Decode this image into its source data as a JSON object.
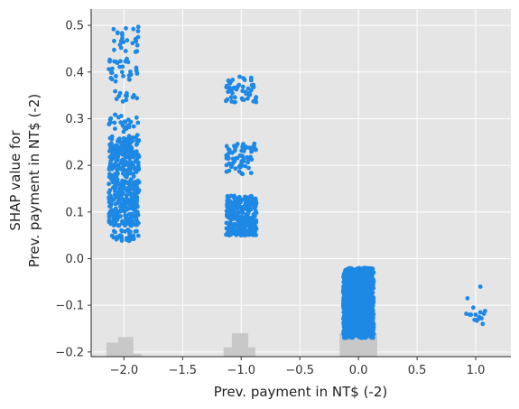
{
  "chart_data": {
    "type": "scatter",
    "xlabel": "Prev. payment in NT$ (-2)",
    "ylabel_lines": [
      "SHAP value for",
      "Prev. payment in NT$ (-2)"
    ],
    "xlim": [
      -2.28,
      1.3
    ],
    "ylim": [
      -0.21,
      0.535
    ],
    "x_ticks": [
      -2.0,
      -1.5,
      -1.0,
      -0.5,
      0.0,
      0.5,
      1.0
    ],
    "x_tick_labels": [
      "−2.0",
      "−1.5",
      "−1.0",
      "−0.5",
      "0.0",
      "0.5",
      "1.0"
    ],
    "y_ticks": [
      -0.2,
      -0.1,
      0.0,
      0.1,
      0.2,
      0.3,
      0.4,
      0.5
    ],
    "y_tick_labels": [
      "−0.2",
      "−0.1",
      "0.0",
      "0.1",
      "0.2",
      "0.3",
      "0.4",
      "0.5"
    ],
    "grid": true,
    "point_color": "#1E88E5",
    "background_color": "#E5E5E5",
    "histogram_color": "#C8C8C8",
    "histogram_bars": [
      {
        "x0": -2.15,
        "x1": -2.05,
        "height": 0.03
      },
      {
        "x0": -2.05,
        "x1": -1.92,
        "height": 0.042
      },
      {
        "x0": -1.92,
        "x1": -1.85,
        "height": 0.006
      },
      {
        "x0": -1.15,
        "x1": -1.08,
        "height": 0.02
      },
      {
        "x0": -1.08,
        "x1": -0.94,
        "height": 0.05
      },
      {
        "x0": -0.94,
        "x1": -0.88,
        "height": 0.02
      },
      {
        "x0": -0.16,
        "x1": 0.16,
        "height": 0.05
      }
    ],
    "series": [
      {
        "category_x": -2.0,
        "clusters": [
          {
            "y0": 0.038,
            "y1": 0.062,
            "n": 35
          },
          {
            "y0": 0.07,
            "y1": 0.26,
            "n": 430
          },
          {
            "y0": 0.26,
            "y1": 0.31,
            "n": 30
          },
          {
            "y0": 0.335,
            "y1": 0.36,
            "n": 12
          },
          {
            "y0": 0.38,
            "y1": 0.43,
            "n": 30
          },
          {
            "y0": 0.44,
            "y1": 0.5,
            "n": 25
          }
        ]
      },
      {
        "category_x": -1.0,
        "clusters": [
          {
            "y0": 0.05,
            "y1": 0.135,
            "n": 320
          },
          {
            "y0": 0.18,
            "y1": 0.25,
            "n": 70
          },
          {
            "y0": 0.33,
            "y1": 0.39,
            "n": 55
          }
        ]
      },
      {
        "category_x": 0.0,
        "clusters": [
          {
            "y0": -0.17,
            "y1": -0.02,
            "n": 1200
          }
        ]
      },
      {
        "category_x": 1.0,
        "points": [
          [
            0.93,
            -0.085
          ],
          [
            0.96,
            -0.12
          ],
          [
            0.98,
            -0.105
          ],
          [
            1.0,
            -0.12
          ],
          [
            1.02,
            -0.13
          ],
          [
            1.04,
            -0.115
          ],
          [
            0.95,
            -0.12
          ],
          [
            1.01,
            -0.133
          ],
          [
            1.05,
            -0.128
          ],
          [
            1.06,
            -0.14
          ],
          [
            0.99,
            -0.131
          ],
          [
            1.07,
            -0.118
          ],
          [
            1.04,
            -0.06
          ],
          [
            0.92,
            -0.118
          ],
          [
            1.03,
            -0.125
          ],
          [
            1.08,
            -0.112
          ]
        ]
      }
    ]
  }
}
